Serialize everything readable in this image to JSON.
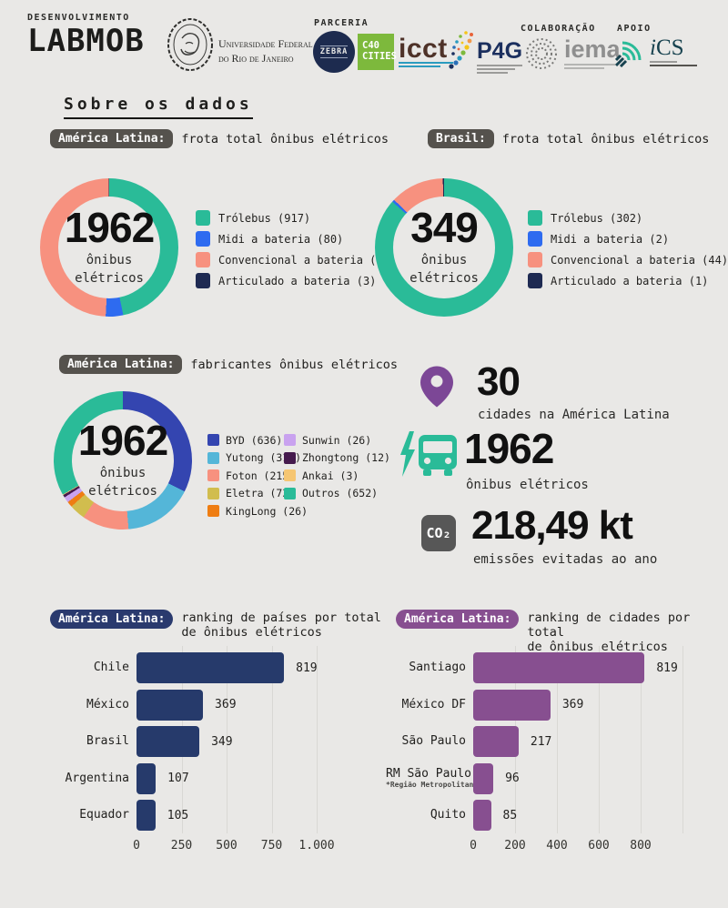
{
  "header": {
    "development_label": "DESENVOLVIMENTO",
    "labmob_logo": "LABMOB",
    "ufrj_name_line1": "Universidade Federal",
    "ufrj_name_line2": "do Rio de Janeiro",
    "parceria_label": "PARCERIA",
    "colaboracao_label": "COLABORAÇÃO",
    "apoio_label": "APOIO",
    "zebra_logo": "ZEBRA",
    "c40_logo_line1": "C40",
    "c40_logo_line2": "CITIES",
    "icct_logo": "icct",
    "p4g_logo": "P4G",
    "iema_logo": "iema",
    "ics_logo_i": "i",
    "ics_logo_cs": "CS"
  },
  "title": "Sobre os dados",
  "panels": {
    "fleet_latam": {
      "badge": "América Latina:",
      "title": "frota total ônibus elétricos"
    },
    "fleet_brasil": {
      "badge": "Brasil:",
      "title": "frota total ônibus elétricos"
    },
    "manufacturers": {
      "badge": "América Latina:",
      "title": "fabricantes ônibus elétricos"
    },
    "ranking_countries": {
      "badge": "América Latina:",
      "title_line1": "ranking de países por total",
      "title_line2": "de ônibus elétricos"
    },
    "ranking_cities": {
      "badge": "América Latina:",
      "title_line1": "ranking de cidades por total",
      "title_line2": "de ônibus elétricos"
    }
  },
  "stats": [
    {
      "icon": "location-pin-icon",
      "value": "30",
      "label": "cidades na América Latina"
    },
    {
      "icon": "electric-bus-icon",
      "value": "1962",
      "label": "ônibus elétricos"
    },
    {
      "icon": "co2-icon",
      "icon_text": "CO₂",
      "value": "218,49 kt",
      "label": "emissões evitadas ao ano"
    }
  ],
  "colors": {
    "background": "#e9e8e6",
    "badge_gray": "#55524d",
    "badge_navy": "#2a3a6e",
    "badge_purple": "#874f90",
    "bar_navy": "#263a6b",
    "bar_purple": "#874f90",
    "pin_purple": "#7c4796",
    "bus_teal": "#2abb98",
    "co2_gray": "#575757"
  },
  "chart_data": [
    {
      "id": "fleet-latam",
      "type": "pie",
      "title": "América Latina: frota total ônibus elétricos",
      "center_value": "1962",
      "center_label": "ônibus\nelétricos",
      "total": 1962,
      "legend_position": "right",
      "segments": [
        {
          "label": "Trólebus",
          "value": 917,
          "color": "#2abb98"
        },
        {
          "label": "Midi a bateria",
          "value": 80,
          "color": "#2e6bf0"
        },
        {
          "label": "Convencional a bateria",
          "value": 962,
          "color": "#f7917f"
        },
        {
          "label": "Articulado a bateria",
          "value": 3,
          "color": "#1e2a52"
        }
      ]
    },
    {
      "id": "fleet-brasil",
      "type": "pie",
      "title": "Brasil: frota total ônibus elétricos",
      "center_value": "349",
      "center_label": "ônibus\nelétricos",
      "total": 349,
      "legend_position": "right",
      "segments": [
        {
          "label": "Trólebus",
          "value": 302,
          "color": "#2abb98"
        },
        {
          "label": "Midi a bateria",
          "value": 2,
          "color": "#2e6bf0"
        },
        {
          "label": "Convencional a bateria",
          "value": 44,
          "color": "#f7917f"
        },
        {
          "label": "Articulado a bateria",
          "value": 1,
          "color": "#1e2a52"
        }
      ]
    },
    {
      "id": "manufacturers",
      "type": "pie",
      "title": "América Latina: fabricantes ônibus elétricos",
      "center_value": "1962",
      "center_label": "ônibus\nelétricos",
      "total": 1962,
      "legend_position": "right-two-columns",
      "segments": [
        {
          "label": "BYD",
          "value": 636,
          "color": "#3445b0"
        },
        {
          "label": "Yutong",
          "value": 319,
          "color": "#54b6d8"
        },
        {
          "label": "Foton",
          "value": 215,
          "color": "#f7917f"
        },
        {
          "label": "Eletra",
          "value": 73,
          "color": "#d1bd4e"
        },
        {
          "label": "KingLong",
          "value": 26,
          "color": "#ef7d12"
        },
        {
          "label": "Sunwin",
          "value": 26,
          "color": "#c9a2ef"
        },
        {
          "label": "Zhongtong",
          "value": 12,
          "color": "#451a4d"
        },
        {
          "label": "Ankai",
          "value": 3,
          "color": "#f6c672"
        },
        {
          "label": "Outros",
          "value": 652,
          "color": "#2abb98"
        }
      ]
    },
    {
      "id": "ranking-paises",
      "type": "bar",
      "title": "América Latina: ranking de países por total de ônibus elétricos",
      "categories": [
        "Chile",
        "México",
        "Brasil",
        "Argentina",
        "Equador"
      ],
      "values": [
        819,
        369,
        349,
        107,
        105
      ],
      "footnotes": [
        null,
        null,
        null,
        null,
        null
      ],
      "bar_color": "#263a6b",
      "xlabel": "",
      "ylabel": "",
      "xlim": [
        0,
        1050
      ],
      "grid": "vertical",
      "xticks": [
        {
          "value": 0,
          "label": "0"
        },
        {
          "value": 250,
          "label": "250"
        },
        {
          "value": 500,
          "label": "500"
        },
        {
          "value": 750,
          "label": "750"
        },
        {
          "value": 1000,
          "label": "1.000"
        }
      ],
      "gridline_values": [
        250,
        500,
        750,
        1000
      ]
    },
    {
      "id": "ranking-cidades",
      "type": "bar",
      "title": "América Latina: ranking de cidades por total de ônibus elétricos",
      "categories": [
        "Santiago",
        "México DF",
        "São Paulo",
        "RM São Paulo",
        "Quito"
      ],
      "values": [
        819,
        369,
        217,
        96,
        85
      ],
      "footnotes": [
        null,
        null,
        null,
        "*Região Metropolitana",
        null
      ],
      "bar_color": "#874f90",
      "xlabel": "",
      "ylabel": "",
      "xlim": [
        0,
        1050
      ],
      "grid": "vertical",
      "xticks": [
        {
          "value": 0,
          "label": "0"
        },
        {
          "value": 200,
          "label": "200"
        },
        {
          "value": 400,
          "label": "400"
        },
        {
          "value": 600,
          "label": "600"
        },
        {
          "value": 800,
          "label": "800"
        }
      ],
      "gridline_values": [
        200,
        400,
        600,
        800,
        1000
      ]
    }
  ]
}
